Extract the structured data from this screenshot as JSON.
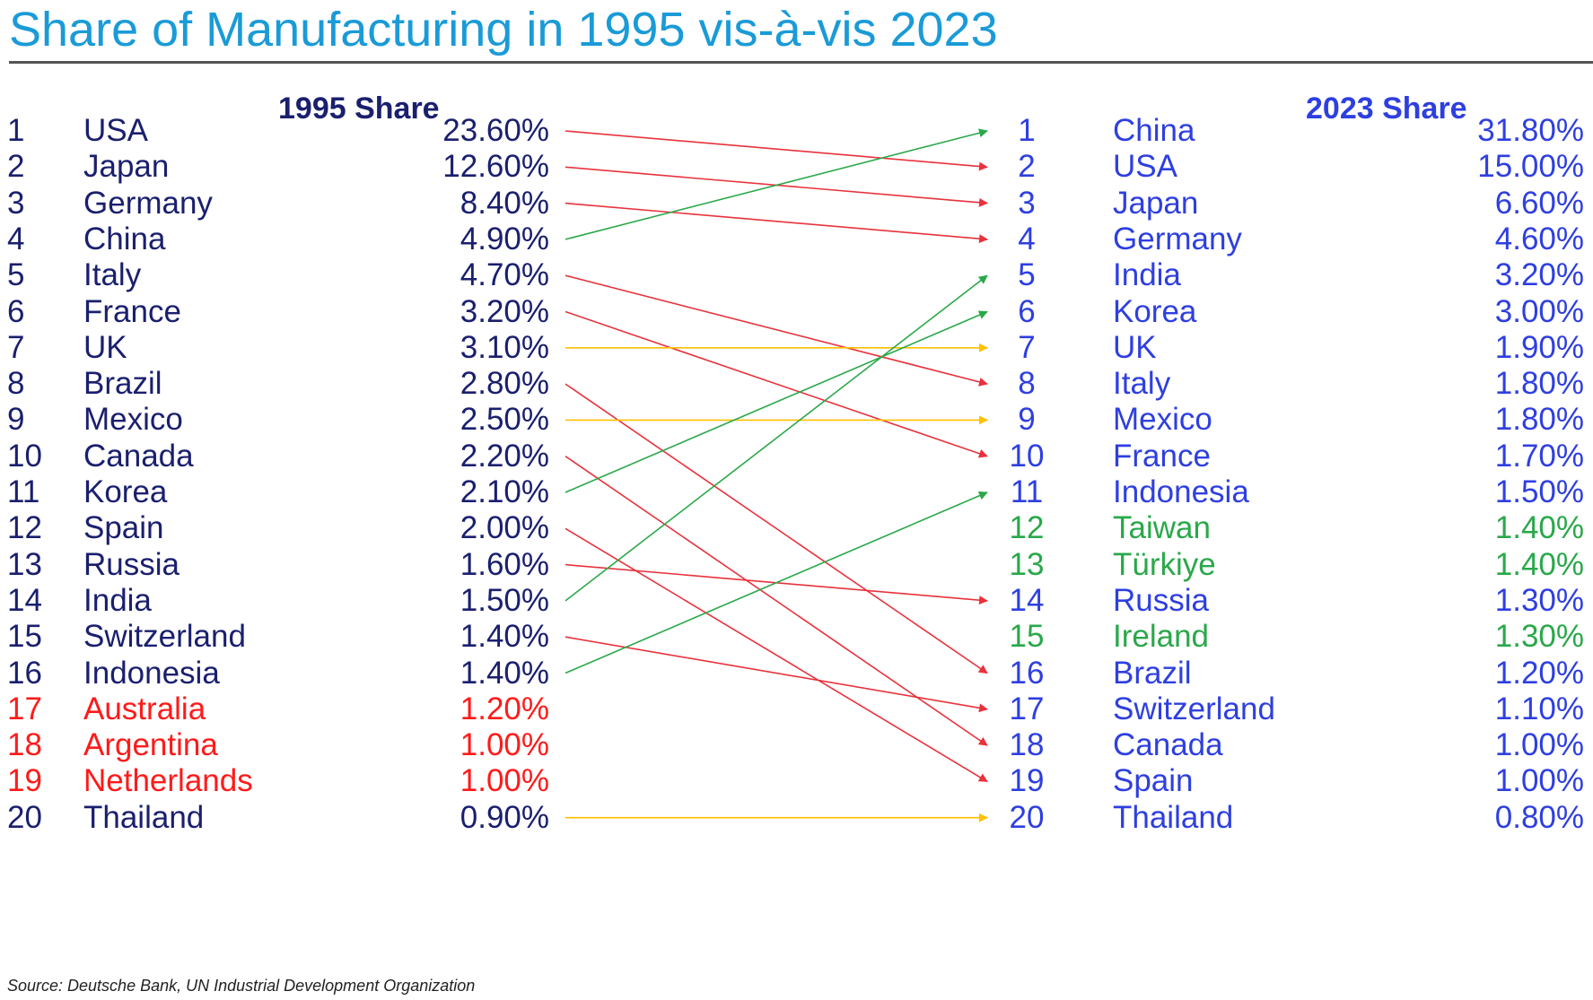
{
  "title": "Share of Manufacturing in 1995 vis-à-vis 2023",
  "source": "Source: Deutsche Bank, UN Industrial Development Organization",
  "colors": {
    "title": "#1a9bd7",
    "dark_text": "#1a1f6e",
    "blue_text": "#2e3fe0",
    "dropped_out": "#ff1a1a",
    "new_entrant": "#2aa84a",
    "arrow_down": "#e8323c",
    "arrow_up": "#2aa84a",
    "arrow_same": "#ffc000"
  },
  "chart_data": {
    "type": "table",
    "left_header": "1995 Share",
    "right_header": "2023 Share",
    "rows_1995": [
      {
        "rank": "1",
        "country": "USA",
        "share": "23.60%",
        "status": "kept"
      },
      {
        "rank": "2",
        "country": "Japan",
        "share": "12.60%",
        "status": "kept"
      },
      {
        "rank": "3",
        "country": "Germany",
        "share": "8.40%",
        "status": "kept"
      },
      {
        "rank": "4",
        "country": "China",
        "share": "4.90%",
        "status": "kept"
      },
      {
        "rank": "5",
        "country": "Italy",
        "share": "4.70%",
        "status": "kept"
      },
      {
        "rank": "6",
        "country": "France",
        "share": "3.20%",
        "status": "kept"
      },
      {
        "rank": "7",
        "country": "UK",
        "share": "3.10%",
        "status": "kept"
      },
      {
        "rank": "8",
        "country": "Brazil",
        "share": "2.80%",
        "status": "kept"
      },
      {
        "rank": "9",
        "country": "Mexico",
        "share": "2.50%",
        "status": "kept"
      },
      {
        "rank": "10",
        "country": "Canada",
        "share": "2.20%",
        "status": "kept"
      },
      {
        "rank": "11",
        "country": "Korea",
        "share": "2.10%",
        "status": "kept"
      },
      {
        "rank": "12",
        "country": "Spain",
        "share": "2.00%",
        "status": "kept"
      },
      {
        "rank": "13",
        "country": "Russia",
        "share": "1.60%",
        "status": "kept"
      },
      {
        "rank": "14",
        "country": "India",
        "share": "1.50%",
        "status": "kept"
      },
      {
        "rank": "15",
        "country": "Switzerland",
        "share": "1.40%",
        "status": "kept"
      },
      {
        "rank": "16",
        "country": "Indonesia",
        "share": "1.40%",
        "status": "kept"
      },
      {
        "rank": "17",
        "country": "Australia",
        "share": "1.20%",
        "status": "dropped"
      },
      {
        "rank": "18",
        "country": "Argentina",
        "share": "1.00%",
        "status": "dropped"
      },
      {
        "rank": "19",
        "country": "Netherlands",
        "share": "1.00%",
        "status": "dropped"
      },
      {
        "rank": "20",
        "country": "Thailand",
        "share": "0.90%",
        "status": "kept"
      }
    ],
    "rows_2023": [
      {
        "rank": "1",
        "country": "China",
        "share": "31.80%",
        "status": "kept"
      },
      {
        "rank": "2",
        "country": "USA",
        "share": "15.00%",
        "status": "kept"
      },
      {
        "rank": "3",
        "country": "Japan",
        "share": "6.60%",
        "status": "kept"
      },
      {
        "rank": "4",
        "country": "Germany",
        "share": "4.60%",
        "status": "kept"
      },
      {
        "rank": "5",
        "country": "India",
        "share": "3.20%",
        "status": "kept"
      },
      {
        "rank": "6",
        "country": "Korea",
        "share": "3.00%",
        "status": "kept"
      },
      {
        "rank": "7",
        "country": "UK",
        "share": "1.90%",
        "status": "kept"
      },
      {
        "rank": "8",
        "country": "Italy",
        "share": "1.80%",
        "status": "kept"
      },
      {
        "rank": "9",
        "country": "Mexico",
        "share": "1.80%",
        "status": "kept"
      },
      {
        "rank": "10",
        "country": "France",
        "share": "1.70%",
        "status": "kept"
      },
      {
        "rank": "11",
        "country": "Indonesia",
        "share": "1.50%",
        "status": "kept"
      },
      {
        "rank": "12",
        "country": "Taiwan",
        "share": "1.40%",
        "status": "new"
      },
      {
        "rank": "13",
        "country": "Türkiye",
        "share": "1.40%",
        "status": "new"
      },
      {
        "rank": "14",
        "country": "Russia",
        "share": "1.30%",
        "status": "kept"
      },
      {
        "rank": "15",
        "country": "Ireland",
        "share": "1.30%",
        "status": "new"
      },
      {
        "rank": "16",
        "country": "Brazil",
        "share": "1.20%",
        "status": "kept"
      },
      {
        "rank": "17",
        "country": "Switzerland",
        "share": "1.10%",
        "status": "kept"
      },
      {
        "rank": "18",
        "country": "Canada",
        "share": "1.00%",
        "status": "kept"
      },
      {
        "rank": "19",
        "country": "Spain",
        "share": "1.00%",
        "status": "kept"
      },
      {
        "rank": "20",
        "country": "Thailand",
        "share": "0.80%",
        "status": "kept"
      }
    ],
    "rank_changes": [
      {
        "country": "USA",
        "from": 1,
        "to": 2,
        "direction": "down"
      },
      {
        "country": "Japan",
        "from": 2,
        "to": 3,
        "direction": "down"
      },
      {
        "country": "Germany",
        "from": 3,
        "to": 4,
        "direction": "down"
      },
      {
        "country": "China",
        "from": 4,
        "to": 1,
        "direction": "up"
      },
      {
        "country": "Italy",
        "from": 5,
        "to": 8,
        "direction": "down"
      },
      {
        "country": "France",
        "from": 6,
        "to": 10,
        "direction": "down"
      },
      {
        "country": "UK",
        "from": 7,
        "to": 7,
        "direction": "same"
      },
      {
        "country": "Brazil",
        "from": 8,
        "to": 16,
        "direction": "down"
      },
      {
        "country": "Mexico",
        "from": 9,
        "to": 9,
        "direction": "same"
      },
      {
        "country": "Canada",
        "from": 10,
        "to": 18,
        "direction": "down"
      },
      {
        "country": "Korea",
        "from": 11,
        "to": 6,
        "direction": "up"
      },
      {
        "country": "Spain",
        "from": 12,
        "to": 19,
        "direction": "down"
      },
      {
        "country": "Russia",
        "from": 13,
        "to": 14,
        "direction": "down"
      },
      {
        "country": "India",
        "from": 14,
        "to": 5,
        "direction": "up"
      },
      {
        "country": "Switzerland",
        "from": 15,
        "to": 17,
        "direction": "down"
      },
      {
        "country": "Indonesia",
        "from": 16,
        "to": 11,
        "direction": "up"
      },
      {
        "country": "Thailand",
        "from": 20,
        "to": 20,
        "direction": "same"
      }
    ]
  }
}
